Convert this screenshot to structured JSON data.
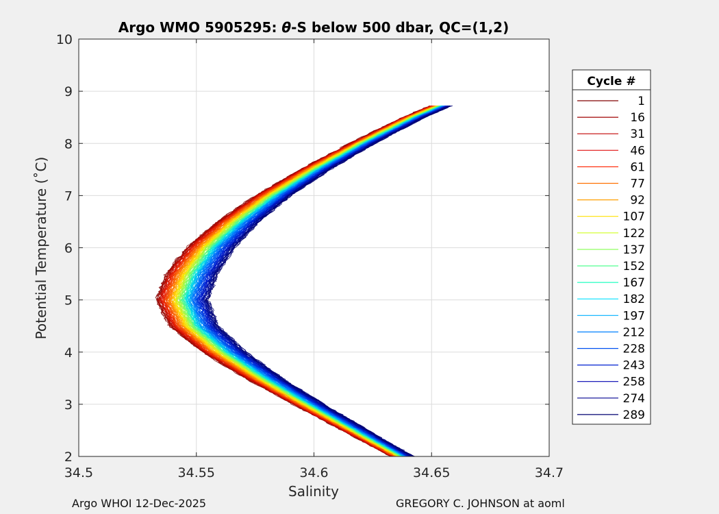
{
  "footer": {
    "left": "Argo WHOI 12-Dec-2025",
    "right": "GREGORY C. JOHNSON at aoml"
  },
  "chart_data": {
    "type": "line",
    "title_prefix": "Argo WMO 5905295: ",
    "title_theta": "θ",
    "title_suffix": "-S below 500 dbar,  QC=(1,2)",
    "xlabel": "Salinity",
    "ylabel": "Potential Temperature (˚C)",
    "xlim": [
      34.5,
      34.7
    ],
    "ylim": [
      2,
      10
    ],
    "xticks": [
      34.5,
      34.55,
      34.6,
      34.65,
      34.7
    ],
    "xtick_labels": [
      "34.5",
      "34.55",
      "34.6",
      "34.65",
      "34.7"
    ],
    "yticks": [
      2,
      3,
      4,
      5,
      6,
      7,
      8,
      9,
      10
    ],
    "ytick_labels": [
      "2",
      "3",
      "4",
      "5",
      "6",
      "7",
      "8",
      "9",
      "10"
    ],
    "grid": true,
    "legend_title": "Cycle #",
    "legend_position": "right",
    "legend": [
      {
        "label": "1",
        "color": "#800000"
      },
      {
        "label": "16",
        "color": "#a00000"
      },
      {
        "label": "31",
        "color": "#c00000"
      },
      {
        "label": "46",
        "color": "#e01010"
      },
      {
        "label": "61",
        "color": "#ff3010"
      },
      {
        "label": "77",
        "color": "#ff7000"
      },
      {
        "label": "92",
        "color": "#ffa000"
      },
      {
        "label": "107",
        "color": "#ffe000"
      },
      {
        "label": "122",
        "color": "#d0ff20"
      },
      {
        "label": "137",
        "color": "#90ff60"
      },
      {
        "label": "152",
        "color": "#50ff90"
      },
      {
        "label": "167",
        "color": "#20ffc0"
      },
      {
        "label": "182",
        "color": "#00e0ff"
      },
      {
        "label": "197",
        "color": "#00b0ff"
      },
      {
        "label": "212",
        "color": "#0080ff"
      },
      {
        "label": "228",
        "color": "#0050f0"
      },
      {
        "label": "243",
        "color": "#0020d0"
      },
      {
        "label": "258",
        "color": "#0000b0"
      },
      {
        "label": "274",
        "color": "#000090"
      },
      {
        "label": "289",
        "color": "#000070"
      }
    ],
    "series_spine": {
      "theta": [
        2.0,
        2.5,
        3.0,
        3.5,
        4.0,
        4.5,
        5.0,
        5.5,
        6.0,
        6.5,
        7.0,
        7.5,
        8.0,
        8.5,
        8.75
      ],
      "salinity": [
        34.637,
        34.617,
        34.597,
        34.578,
        34.561,
        34.548,
        34.543,
        34.547,
        34.555,
        34.567,
        34.582,
        34.6,
        34.62,
        34.642,
        34.655
      ]
    },
    "series_offset_first": -0.01,
    "series_offset_last": 0.012
  }
}
